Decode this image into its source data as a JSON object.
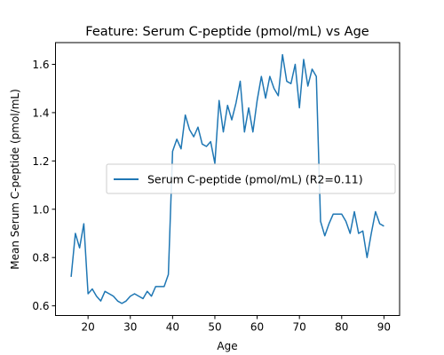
{
  "chart_data": {
    "type": "line",
    "title": "Feature: Serum C-peptide (pmol/mL) vs Age",
    "xlabel": "Age",
    "ylabel": "Mean Serum C-peptide (pmol/mL)",
    "xlim": [
      12.3,
      93.7
    ],
    "ylim": [
      0.56,
      1.69
    ],
    "xticks": [
      20,
      30,
      40,
      50,
      60,
      70,
      80,
      90
    ],
    "yticks": [
      0.6,
      0.8,
      1.0,
      1.2,
      1.4,
      1.6
    ],
    "ytick_labels": [
      "0.6",
      "0.8",
      "1.0",
      "1.2",
      "1.4",
      "1.6"
    ],
    "grid": false,
    "legend_position": "center-right",
    "series": [
      {
        "name": "Serum C-peptide (pmol/mL) (R2=0.11)",
        "color": "#1f77b4",
        "x": [
          16,
          17,
          18,
          19,
          20,
          21,
          22,
          23,
          24,
          25,
          26,
          27,
          28,
          29,
          30,
          31,
          32,
          33,
          34,
          35,
          36,
          37,
          38,
          39,
          40,
          41,
          42,
          43,
          44,
          45,
          46,
          47,
          48,
          49,
          50,
          51,
          52,
          53,
          54,
          55,
          56,
          57,
          58,
          59,
          60,
          61,
          62,
          63,
          64,
          65,
          66,
          67,
          68,
          69,
          70,
          71,
          72,
          73,
          74,
          75,
          76,
          77,
          78,
          79,
          80,
          81,
          82,
          83,
          84,
          85,
          86,
          87,
          88,
          89,
          90
        ],
        "y": [
          0.72,
          0.9,
          0.84,
          0.94,
          0.65,
          0.67,
          0.64,
          0.62,
          0.66,
          0.65,
          0.64,
          0.62,
          0.61,
          0.62,
          0.64,
          0.65,
          0.64,
          0.63,
          0.66,
          0.64,
          0.68,
          0.68,
          0.68,
          0.73,
          1.24,
          1.29,
          1.25,
          1.39,
          1.33,
          1.3,
          1.34,
          1.27,
          1.26,
          1.28,
          1.19,
          1.45,
          1.32,
          1.43,
          1.37,
          1.44,
          1.53,
          1.32,
          1.42,
          1.32,
          1.45,
          1.55,
          1.46,
          1.55,
          1.5,
          1.47,
          1.64,
          1.53,
          1.52,
          1.6,
          1.42,
          1.62,
          1.51,
          1.58,
          1.55,
          0.95,
          0.89,
          0.94,
          0.98,
          0.98,
          0.98,
          0.95,
          0.9,
          0.99,
          0.9,
          0.91,
          0.8,
          0.9,
          0.99,
          0.94,
          0.93
        ]
      }
    ]
  }
}
